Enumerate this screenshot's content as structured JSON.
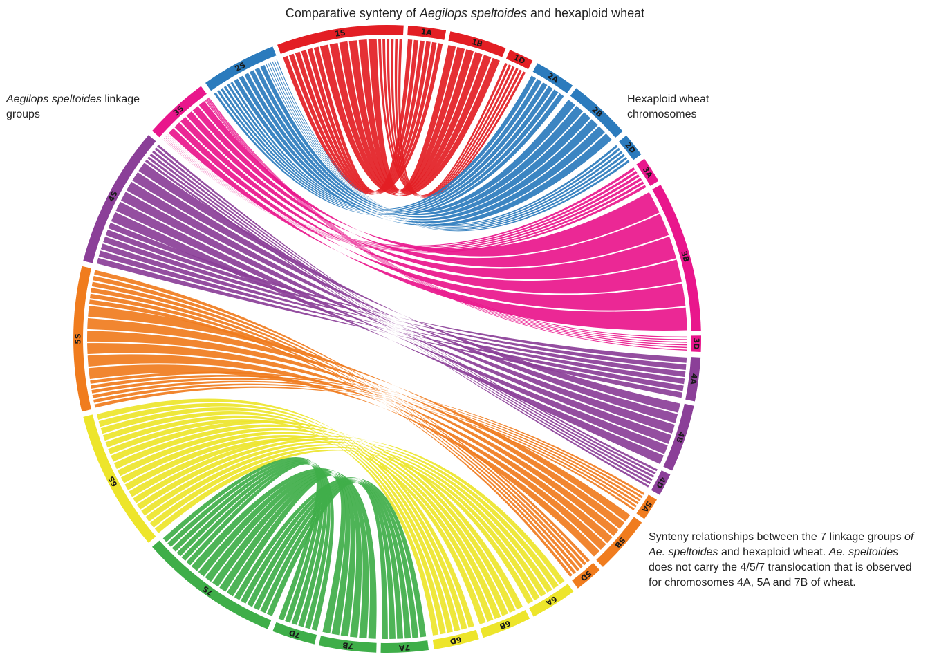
{
  "title": {
    "prefix": "Comparative synteny of ",
    "italic": "Aegilops speltoides",
    "suffix": " and hexaploid wheat"
  },
  "left_label": {
    "italic": "Aegilops speltoides",
    "suffix": " linkage groups"
  },
  "right_label": "Hexaploid wheat chromosomes",
  "caption": {
    "p1": "Synteny relationships between the 7 linkage groups ",
    "p2": "of Ae. speltoides",
    "p3": " and hexaploid wheat. ",
    "p4": "Ae. speltoides",
    "p5": " does not carry the 4/5/7 translocation that is observed for chromosomes 4A, 5A and 7B of wheat."
  },
  "colors": {
    "1": "#e31e24",
    "2": "#2b7bbd",
    "3": "#e9168c",
    "4": "#8b3f98",
    "5": "#f07c1e",
    "6": "#ede52b",
    "7": "#3fae49"
  },
  "segments": [
    {
      "id": "1S",
      "group": "1",
      "label": "1S"
    },
    {
      "id": "1A",
      "group": "1",
      "label": "1A"
    },
    {
      "id": "1B",
      "group": "1",
      "label": "1B"
    },
    {
      "id": "1D",
      "group": "1",
      "label": "1D"
    },
    {
      "id": "2A",
      "group": "2",
      "label": "2A"
    },
    {
      "id": "2B",
      "group": "2",
      "label": "2B"
    },
    {
      "id": "2D",
      "group": "2",
      "label": "2D"
    },
    {
      "id": "3A",
      "group": "3",
      "label": "3A"
    },
    {
      "id": "3B",
      "group": "3",
      "label": "3B"
    },
    {
      "id": "3D",
      "group": "3",
      "label": "3D"
    },
    {
      "id": "4A",
      "group": "4",
      "label": "4A"
    },
    {
      "id": "4B",
      "group": "4",
      "label": "4B"
    },
    {
      "id": "4D",
      "group": "4",
      "label": "4D"
    },
    {
      "id": "5A",
      "group": "5",
      "label": "5A"
    },
    {
      "id": "5B",
      "group": "5",
      "label": "5B"
    },
    {
      "id": "5D",
      "group": "5",
      "label": "5D"
    },
    {
      "id": "6A",
      "group": "6",
      "label": "6A"
    },
    {
      "id": "6B",
      "group": "6",
      "label": "6B"
    },
    {
      "id": "6D",
      "group": "6",
      "label": "6D"
    },
    {
      "id": "7A",
      "group": "7",
      "label": "7A"
    },
    {
      "id": "7B",
      "group": "7",
      "label": "7B"
    },
    {
      "id": "7D",
      "group": "7",
      "label": "7D"
    },
    {
      "id": "7S",
      "group": "7",
      "label": "7S"
    },
    {
      "id": "6S",
      "group": "6",
      "label": "6S"
    },
    {
      "id": "5S",
      "group": "5",
      "label": "5S"
    },
    {
      "id": "4S",
      "group": "4",
      "label": "4S"
    },
    {
      "id": "3S",
      "group": "3",
      "label": "3S"
    },
    {
      "id": "2S",
      "group": "2",
      "label": "2S"
    }
  ],
  "links": [
    {
      "from": "1S",
      "to": "1A",
      "group": "1"
    },
    {
      "from": "1S",
      "to": "1B",
      "group": "1"
    },
    {
      "from": "1S",
      "to": "1D",
      "group": "1"
    },
    {
      "from": "2S",
      "to": "2A",
      "group": "2"
    },
    {
      "from": "2S",
      "to": "2B",
      "group": "2"
    },
    {
      "from": "2S",
      "to": "2D",
      "group": "2"
    },
    {
      "from": "3S",
      "to": "3A",
      "group": "3"
    },
    {
      "from": "3S",
      "to": "3B",
      "group": "3"
    },
    {
      "from": "3S",
      "to": "3D",
      "group": "3"
    },
    {
      "from": "4S",
      "to": "4A",
      "group": "4"
    },
    {
      "from": "4S",
      "to": "4B",
      "group": "4"
    },
    {
      "from": "4S",
      "to": "4D",
      "group": "4"
    },
    {
      "from": "5S",
      "to": "5A",
      "group": "5"
    },
    {
      "from": "5S",
      "to": "5B",
      "group": "5"
    },
    {
      "from": "5S",
      "to": "5D",
      "group": "5"
    },
    {
      "from": "6S",
      "to": "6A",
      "group": "6"
    },
    {
      "from": "6S",
      "to": "6B",
      "group": "6"
    },
    {
      "from": "6S",
      "to": "6D",
      "group": "6"
    },
    {
      "from": "7S",
      "to": "7A",
      "group": "7"
    },
    {
      "from": "7S",
      "to": "7B",
      "group": "7"
    },
    {
      "from": "7S",
      "to": "7D",
      "group": "7"
    }
  ]
}
